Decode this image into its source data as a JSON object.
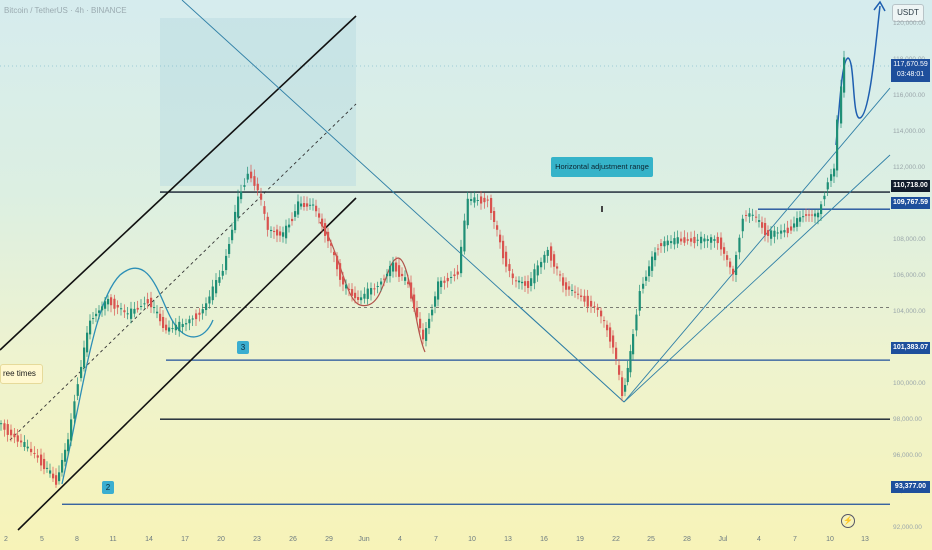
{
  "header": {
    "symbol_line": "Bitcoin / TetherUS · 4h · BINANCE"
  },
  "currency": "USDT",
  "chart_data": {
    "type": "candlestick",
    "ylim": [
      92000,
      120500
    ],
    "price_ticks": [
      "120,000.00",
      "118,000.00",
      "116,000.00",
      "114,000.00",
      "112,000.00",
      "110,000.00",
      "108,000.00",
      "106,000.00",
      "104,000.00",
      "102,000.00",
      "100,000.00",
      "98,000.00",
      "96,000.00",
      "94,000.00",
      "92,000.00"
    ],
    "x_ticks": [
      "2",
      "5",
      "8",
      "11",
      "14",
      "17",
      "20",
      "23",
      "26",
      "29",
      "Jun",
      "4",
      "7",
      "10",
      "13",
      "16",
      "19",
      "22",
      "25",
      "28",
      "Jul",
      "4",
      "7",
      "10",
      "13"
    ],
    "price_labels": {
      "live_price": "117,670.59",
      "countdown": "03:48:01",
      "resistance": "110,718.00",
      "breakout": "109,767.59",
      "support_3": "101,383.07",
      "support_2": "93,377.00"
    },
    "levels": [
      {
        "price": 110718,
        "color": "#121c2c"
      },
      {
        "price": 109767.59,
        "color": "#1e4f9c"
      },
      {
        "price": 101383.07,
        "color": "#1e4f9c"
      },
      {
        "price": 93377,
        "color": "#1e4f9c"
      },
      {
        "price": 98100,
        "color": "#121c2c"
      },
      {
        "price": 104300,
        "color": "#555555"
      }
    ],
    "annotations": {
      "range": "Horizontal adjustment range",
      "times": "ree times",
      "badge_3": "3",
      "badge_2": "2"
    }
  }
}
